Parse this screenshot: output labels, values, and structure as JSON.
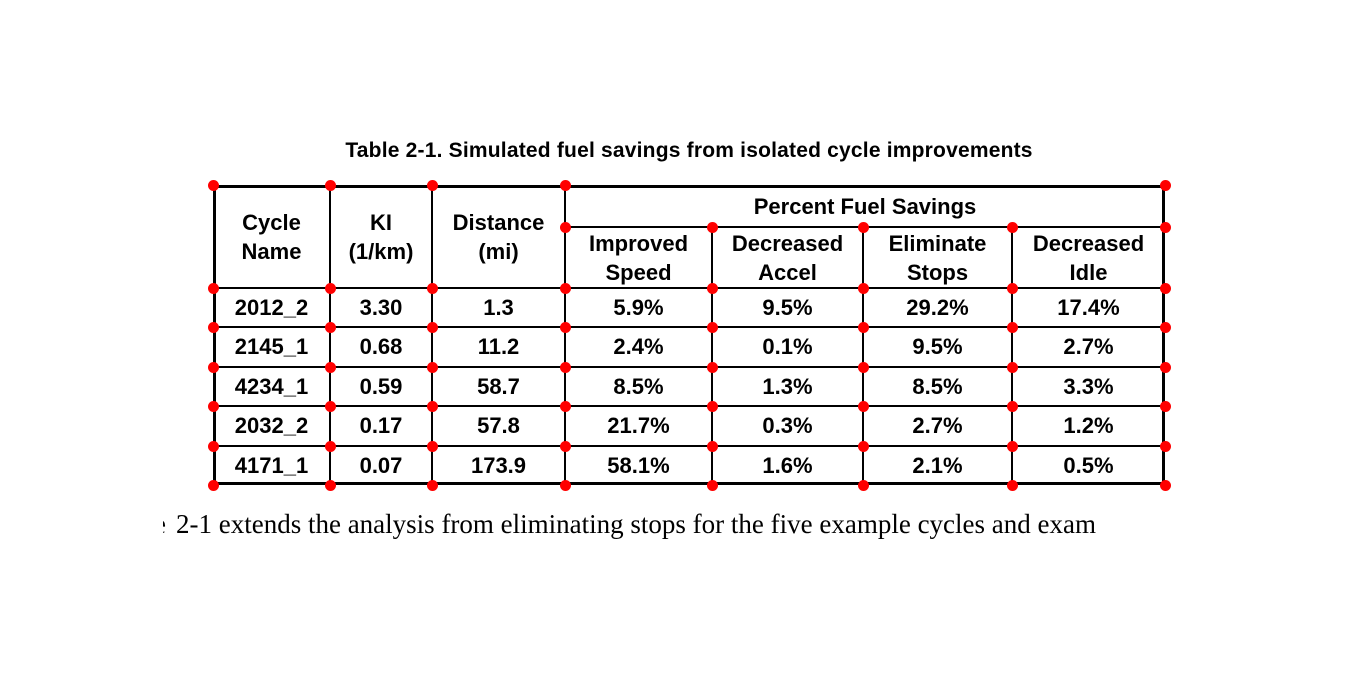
{
  "caption": "Table 2-1. Simulated fuel savings from isolated cycle improvements",
  "table": {
    "columns": [
      "Cycle\nName",
      "KI\n(1/km)",
      "Distance\n(mi)"
    ],
    "span_header": "Percent Fuel Savings",
    "sub_columns": [
      "Improved\nSpeed",
      "Decreased\nAccel",
      "Eliminate\nStops",
      "Decreased\nIdle"
    ],
    "rows": [
      [
        "2012_2",
        "3.30",
        "1.3",
        "5.9%",
        "9.5%",
        "29.2%",
        "17.4%"
      ],
      [
        "2145_1",
        "0.68",
        "11.2",
        "2.4%",
        "0.1%",
        "9.5%",
        "2.7%"
      ],
      [
        "4234_1",
        "0.59",
        "58.7",
        "8.5%",
        "1.3%",
        "8.5%",
        "3.3%"
      ],
      [
        "2032_2",
        "0.17",
        "57.8",
        "21.7%",
        "0.3%",
        "2.7%",
        "1.2%"
      ],
      [
        "4171_1",
        "0.07",
        "173.9",
        "58.1%",
        "1.6%",
        "2.1%",
        "0.5%"
      ]
    ]
  },
  "chart_data": {
    "type": "table",
    "title": "Table 2-1. Simulated fuel savings from isolated cycle improvements",
    "columns": [
      "Cycle Name",
      "KI (1/km)",
      "Distance (mi)",
      "Percent Fuel Savings - Improved Speed",
      "Percent Fuel Savings - Decreased Accel",
      "Percent Fuel Savings - Eliminate Stops",
      "Percent Fuel Savings - Decreased Idle"
    ],
    "rows": [
      [
        "2012_2",
        3.3,
        1.3,
        "5.9%",
        "9.5%",
        "29.2%",
        "17.4%"
      ],
      [
        "2145_1",
        0.68,
        11.2,
        "2.4%",
        "0.1%",
        "9.5%",
        "2.7%"
      ],
      [
        "4234_1",
        0.59,
        58.7,
        "8.5%",
        "1.3%",
        "8.5%",
        "3.3%"
      ],
      [
        "2032_2",
        0.17,
        57.8,
        "21.7%",
        "0.3%",
        "2.7%",
        "1.2%"
      ],
      [
        "4171_1",
        0.07,
        173.9,
        "58.1%",
        "1.6%",
        "2.1%",
        "0.5%"
      ]
    ]
  },
  "body_text": {
    "clipped_fragment": "e",
    "line": "2-1 extends the analysis from eliminating stops for the five example cycles and exam"
  },
  "annotations": {
    "dot_color": "#ff0000",
    "line_color": "#000000"
  }
}
